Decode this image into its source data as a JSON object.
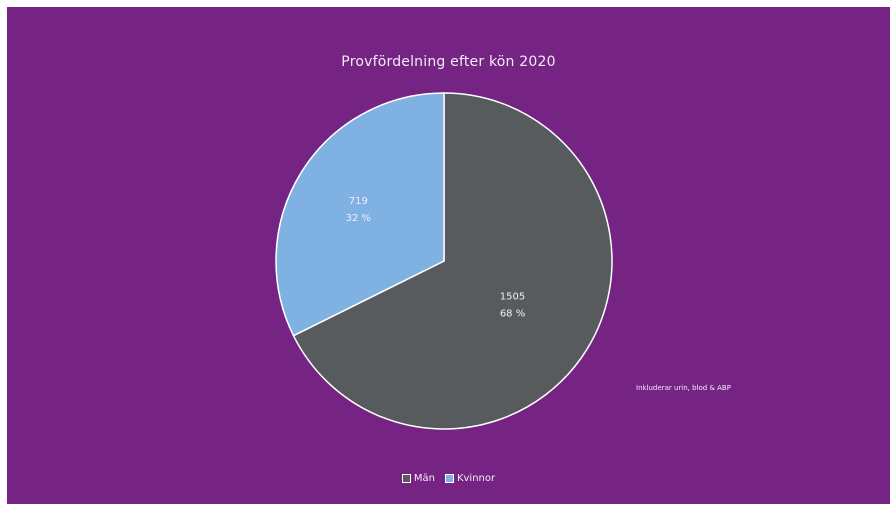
{
  "chart_data": {
    "type": "pie",
    "title": "Provfördelning efter kön 2020",
    "slices": [
      {
        "name": "Män",
        "value": 1505,
        "percent_label": "68 %",
        "color": "#575b5e"
      },
      {
        "name": "Kvinnor",
        "value": 719,
        "percent_label": "32 %",
        "color": "#7fb2e3"
      }
    ],
    "legend_position": "bottom",
    "annotation": "Inkluderar urin, blod & ABP",
    "slice_border_color": "#ffffff"
  },
  "colors": {
    "background": "#762483",
    "text": "#f3ecf6"
  }
}
